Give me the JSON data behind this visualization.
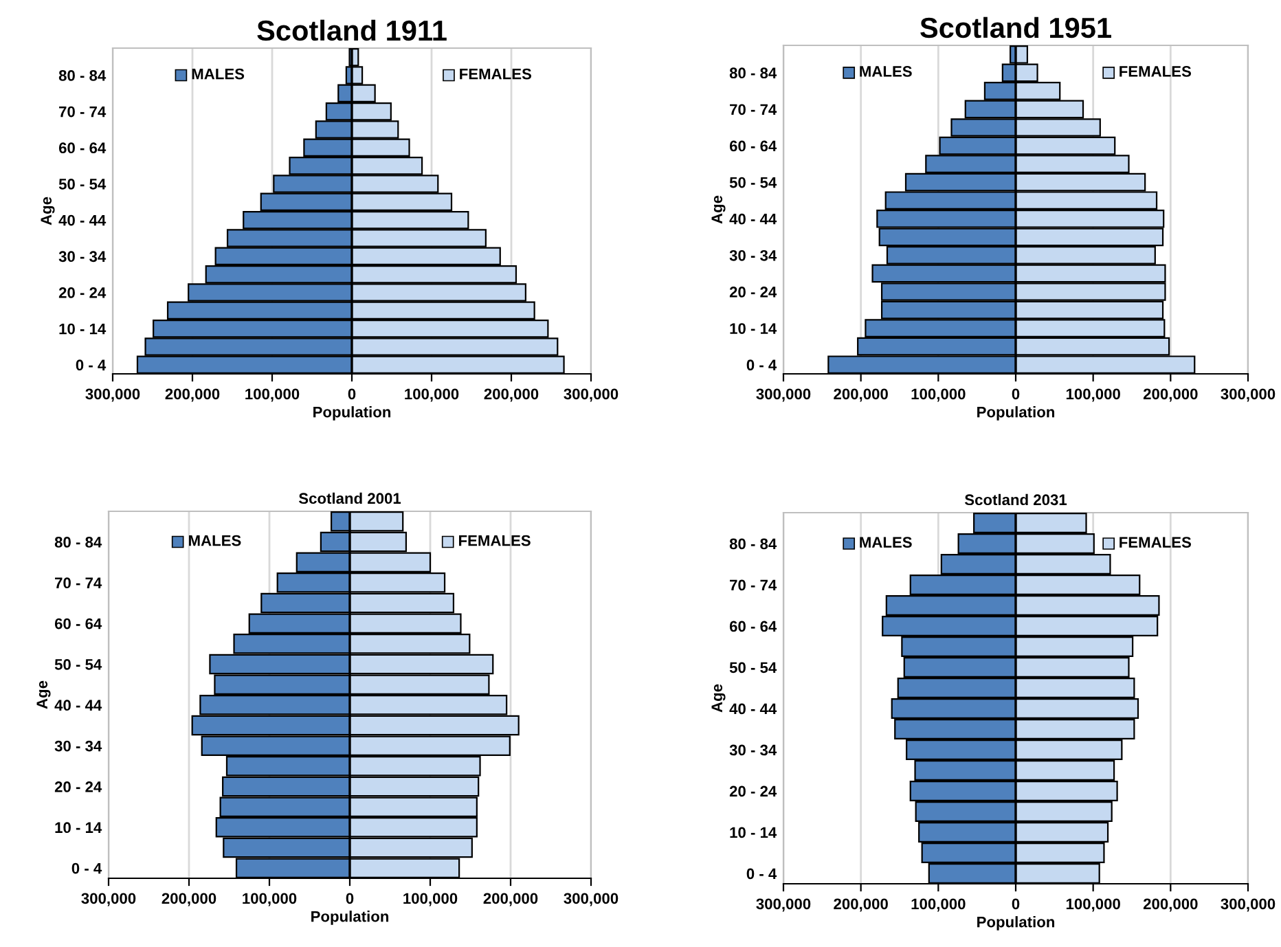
{
  "chart_data": [
    {
      "type": "bar",
      "orientation": "horizontal",
      "stacked": true,
      "title": "Scotland 1911",
      "xlabel": "Population",
      "ylabel": "Age",
      "legend": "top",
      "grid": "x",
      "categories": [
        null,
        "80 - 84",
        null,
        "70 - 74",
        null,
        "60 - 64",
        null,
        "50 - 54",
        null,
        "40 - 44",
        null,
        "30 - 34",
        null,
        "20 - 24",
        null,
        "10 - 14",
        null,
        "0 - 4"
      ],
      "xlim": [
        -300000,
        300000
      ],
      "xticks": [
        {
          "value": -300000,
          "label": "300,000"
        },
        {
          "value": -200000,
          "label": "200,000"
        },
        {
          "value": -100000,
          "label": "100,000"
        },
        0,
        {
          "value": 100000,
          "label": "100,000"
        },
        {
          "value": 200000,
          "label": "200,000"
        },
        {
          "value": 300000,
          "label": "300,000"
        }
      ],
      "series": [
        {
          "name": "MALES",
          "color": "#4f81bd",
          "values": [
            -3000,
            -7000,
            -17000,
            -32000,
            -45000,
            -60000,
            -78000,
            -98000,
            -114000,
            -136000,
            -156000,
            -171000,
            -183000,
            -205000,
            -231000,
            -249000,
            -259000,
            -269000
          ]
        },
        {
          "name": "FEMALES",
          "color": "#c5d9f1",
          "values": [
            8000,
            13000,
            29000,
            49000,
            58000,
            72000,
            88000,
            108000,
            125000,
            146000,
            168000,
            186000,
            206000,
            218000,
            229000,
            246000,
            258000,
            266000
          ]
        }
      ]
    },
    {
      "type": "bar",
      "orientation": "horizontal",
      "stacked": true,
      "title": "Scotland 1951",
      "xlabel": "Population",
      "ylabel": "Age",
      "legend": "top",
      "grid": "x",
      "categories": [
        null,
        "80 - 84",
        null,
        "70 - 74",
        null,
        "60 - 64",
        null,
        "50 - 54",
        null,
        "40 - 44",
        null,
        "30 - 34",
        null,
        "20 - 24",
        null,
        "10 - 14",
        null,
        "0 - 4"
      ],
      "xlim": [
        -300000,
        300000
      ],
      "xticks": [
        {
          "value": -300000,
          "label": "300,000"
        },
        {
          "value": -200000,
          "label": "200,000"
        },
        {
          "value": -100000,
          "label": "100,000"
        },
        0,
        {
          "value": 100000,
          "label": "100,000"
        },
        {
          "value": 200000,
          "label": "200,000"
        },
        {
          "value": 300000,
          "label": "300,000"
        }
      ],
      "series": [
        {
          "name": "MALES",
          "color": "#4f81bd",
          "values": [
            -7000,
            -17000,
            -40000,
            -65000,
            -83000,
            -98000,
            -116000,
            -142000,
            -168000,
            -179000,
            -176000,
            -166000,
            -185000,
            -173000,
            -173000,
            -194000,
            -204000,
            -242000
          ]
        },
        {
          "name": "FEMALES",
          "color": "#c5d9f1",
          "values": [
            15000,
            28000,
            57000,
            87000,
            109000,
            128000,
            146000,
            167000,
            182000,
            191000,
            190000,
            180000,
            193000,
            193000,
            190000,
            192000,
            198000,
            231000
          ]
        }
      ]
    },
    {
      "type": "bar",
      "orientation": "horizontal",
      "stacked": true,
      "title": "Scotland 2001",
      "xlabel": "Population",
      "ylabel": "Age",
      "legend": "top",
      "grid": "x",
      "categories": [
        null,
        "80 - 84",
        null,
        "70 - 74",
        null,
        "60 - 64",
        null,
        "50 - 54",
        null,
        "40 - 44",
        null,
        "30 - 34",
        null,
        "20 - 24",
        null,
        "10 - 14",
        null,
        "0 - 4"
      ],
      "xlim": [
        -300000,
        300000
      ],
      "xticks": [
        {
          "value": -300000,
          "label": "300,000"
        },
        {
          "value": -200000,
          "label": "200,000"
        },
        {
          "value": -100000,
          "label": "100,000"
        },
        0,
        {
          "value": 100000,
          "label": "100,000"
        },
        {
          "value": 200000,
          "label": "200,000"
        },
        {
          "value": 300000,
          "label": "300,000"
        }
      ],
      "series": [
        {
          "name": "MALES",
          "color": "#4f81bd",
          "values": [
            -23000,
            -36000,
            -66000,
            -90000,
            -110000,
            -125000,
            -144000,
            -174000,
            -168000,
            -186000,
            -196000,
            -184000,
            -153000,
            -158000,
            -161000,
            -166000,
            -157000,
            -141000
          ]
        },
        {
          "name": "FEMALES",
          "color": "#c5d9f1",
          "values": [
            66000,
            70000,
            100000,
            118000,
            129000,
            138000,
            149000,
            178000,
            173000,
            195000,
            210000,
            199000,
            162000,
            160000,
            158000,
            158000,
            152000,
            136000
          ]
        }
      ]
    },
    {
      "type": "bar",
      "orientation": "horizontal",
      "stacked": true,
      "title": "Scotland 2031",
      "xlabel": "Population",
      "ylabel": "Age",
      "legend": "top",
      "grid": "x",
      "categories": [
        null,
        "80 - 84",
        null,
        "70 - 74",
        null,
        "60 - 64",
        null,
        "50 - 54",
        null,
        "40 - 44",
        null,
        "30 - 34",
        null,
        "20 - 24",
        null,
        "10 - 14",
        null,
        "0 - 4"
      ],
      "xlim": [
        -300000,
        300000
      ],
      "xticks": [
        {
          "value": -300000,
          "label": "300,000"
        },
        {
          "value": -200000,
          "label": "200,000"
        },
        {
          "value": -100000,
          "label": "100,000"
        },
        0,
        {
          "value": 100000,
          "label": "100,000"
        },
        {
          "value": 200000,
          "label": "200,000"
        },
        {
          "value": 300000,
          "label": "300,000"
        }
      ],
      "series": [
        {
          "name": "MALES",
          "color": "#4f81bd",
          "values": [
            -54000,
            -74000,
            -96000,
            -136000,
            -167000,
            -172000,
            -147000,
            -144000,
            -152000,
            -160000,
            -156000,
            -141000,
            -130000,
            -136000,
            -129000,
            -125000,
            -121000,
            -112000
          ]
        },
        {
          "name": "FEMALES",
          "color": "#c5d9f1",
          "values": [
            91000,
            101000,
            122000,
            160000,
            185000,
            183000,
            151000,
            146000,
            153000,
            158000,
            153000,
            137000,
            127000,
            131000,
            124000,
            119000,
            114000,
            108000
          ]
        }
      ]
    }
  ]
}
